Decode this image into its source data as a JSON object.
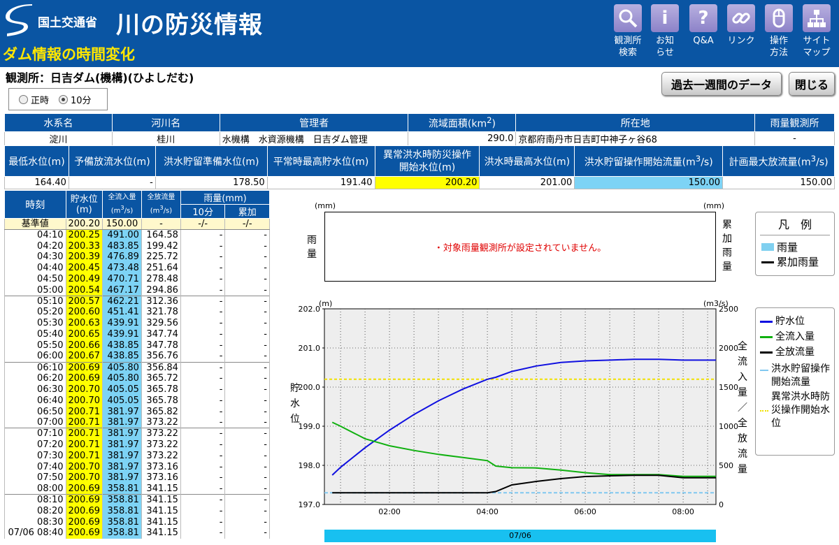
{
  "header": {
    "ministry": "国土交通省",
    "site_title": "川の防災情報",
    "page_title": "ダム情報の時間変化",
    "nav": [
      {
        "line1": "観測所",
        "line2": "検索",
        "icon": "search-icon"
      },
      {
        "line1": "お知",
        "line2": "らせ",
        "icon": "info-icon"
      },
      {
        "line1": "Q&A",
        "line2": "",
        "icon": "question-icon"
      },
      {
        "line1": "リンク",
        "line2": "",
        "icon": "link-icon"
      },
      {
        "line1": "操作",
        "line2": "方法",
        "icon": "mouse-icon"
      },
      {
        "line1": "サイト",
        "line2": "マップ",
        "icon": "sitemap-icon"
      }
    ],
    "icon_glyphs": {
      "info": "i",
      "question": "?"
    }
  },
  "station": "観測所：日吉ダム(機構)(ひよしだむ)",
  "buttons": {
    "past_week": "過去一週間のデータ",
    "close": "閉じる"
  },
  "radio": {
    "hourly": "正時",
    "ten_min": "10分",
    "selected": "10分"
  },
  "info1": {
    "headers": [
      "水系名",
      "河川名",
      "管理者",
      "流域面積(km",
      "2",
      ")",
      "所在地",
      "雨量観測所"
    ],
    "values": [
      "淀川",
      "桂川",
      "水機構　水資源機構　日吉ダム管理",
      "290.0",
      "京都府南丹市日吉町中神子ヶ谷68",
      "-"
    ]
  },
  "info2": {
    "headers": [
      "最低水位(m)",
      "予備放流水位(m)",
      "洪水貯留準備水位(m)",
      "平常時最高貯水位(m)",
      "異常洪水時防災操作",
      "開始水位(m)",
      "洪水時最高水位(m)",
      "洪水貯留操作開始流量(m",
      "3",
      "/s)",
      "計画最大放流量(m",
      "3",
      "/s)"
    ],
    "values": [
      "164.40",
      "-",
      "178.50",
      "191.40",
      "200.20",
      "201.00",
      "150.00",
      "150.00"
    ]
  },
  "time_table": {
    "headers": {
      "time": "時刻",
      "level": "貯水位",
      "level_unit": "(m)",
      "inflow": "全流入量",
      "outflow": "全放流量",
      "flow_unit_pre": "(m",
      "flow_unit_sup": "3",
      "flow_unit_post": "/s)",
      "rain": "雨量(mm)",
      "rain10": "10分",
      "rain_cum": "累加"
    },
    "base": {
      "label": "基準値",
      "level": "200.20",
      "inflow": "150.00",
      "outflow": "-",
      "rain10": "-/-",
      "rain_cum": "-/-"
    },
    "rows": [
      [
        "04:10",
        "200.25",
        "491.00",
        "164.58",
        "-",
        "-"
      ],
      [
        "04:20",
        "200.33",
        "483.85",
        "199.42",
        "-",
        "-"
      ],
      [
        "04:30",
        "200.39",
        "476.89",
        "225.72",
        "-",
        "-"
      ],
      [
        "04:40",
        "200.45",
        "473.48",
        "251.64",
        "-",
        "-"
      ],
      [
        "04:50",
        "200.49",
        "470.71",
        "278.48",
        "-",
        "-"
      ],
      [
        "05:00",
        "200.54",
        "467.17",
        "294.86",
        "-",
        "-"
      ],
      [
        "05:10",
        "200.57",
        "462.21",
        "312.36",
        "-",
        "-"
      ],
      [
        "05:20",
        "200.60",
        "451.41",
        "321.78",
        "-",
        "-"
      ],
      [
        "05:30",
        "200.63",
        "439.91",
        "329.56",
        "-",
        "-"
      ],
      [
        "05:40",
        "200.65",
        "439.91",
        "347.74",
        "-",
        "-"
      ],
      [
        "05:50",
        "200.66",
        "438.85",
        "347.78",
        "-",
        "-"
      ],
      [
        "06:00",
        "200.67",
        "438.85",
        "356.76",
        "-",
        "-"
      ],
      [
        "06:10",
        "200.69",
        "405.80",
        "356.84",
        "-",
        "-"
      ],
      [
        "06:20",
        "200.69",
        "405.80",
        "365.72",
        "-",
        "-"
      ],
      [
        "06:30",
        "200.70",
        "405.05",
        "365.78",
        "-",
        "-"
      ],
      [
        "06:40",
        "200.70",
        "405.05",
        "365.78",
        "-",
        "-"
      ],
      [
        "06:50",
        "200.71",
        "381.97",
        "365.82",
        "-",
        "-"
      ],
      [
        "07:00",
        "200.71",
        "381.97",
        "373.22",
        "-",
        "-"
      ],
      [
        "07:10",
        "200.71",
        "381.97",
        "373.22",
        "-",
        "-"
      ],
      [
        "07:20",
        "200.71",
        "381.97",
        "373.22",
        "-",
        "-"
      ],
      [
        "07:30",
        "200.71",
        "381.97",
        "373.22",
        "-",
        "-"
      ],
      [
        "07:40",
        "200.70",
        "381.97",
        "373.16",
        "-",
        "-"
      ],
      [
        "07:50",
        "200.70",
        "381.97",
        "373.16",
        "-",
        "-"
      ],
      [
        "08:00",
        "200.69",
        "358.81",
        "341.15",
        "-",
        "-"
      ],
      [
        "08:10",
        "200.69",
        "358.81",
        "341.15",
        "-",
        "-"
      ],
      [
        "08:20",
        "200.69",
        "358.81",
        "341.15",
        "-",
        "-"
      ],
      [
        "08:30",
        "200.69",
        "358.81",
        "341.15",
        "-",
        "-"
      ],
      [
        "07/06 08:40",
        "200.69",
        "358.81",
        "341.15",
        "-",
        "-"
      ]
    ]
  },
  "rain_chart": {
    "unit_left": "(mm)",
    "unit_right": "(mm)",
    "left_label": "雨量",
    "right_label": "累加雨量",
    "message": "・対象雨量観測所が設定されていません。",
    "legend_title": "凡　例",
    "legend": [
      "雨量",
      "累加雨量"
    ]
  },
  "chart_data": {
    "type": "line",
    "unit_left": "(m)",
    "unit_right": "(m3/s)",
    "ylabel": "貯水位",
    "y2label": "全流入量／全放流量",
    "ylim": [
      197.0,
      202.0
    ],
    "y2lim": [
      0,
      2500
    ],
    "yticks": [
      "202.0",
      "201.0",
      "200.0",
      "199.0",
      "198.0",
      "197.0"
    ],
    "y2ticks": [
      "2500",
      "2000",
      "1500",
      "1000",
      "500",
      "0"
    ],
    "xticks": [
      "02:00",
      "04:00",
      "06:00",
      "08:00"
    ],
    "xlim_hours": [
      0.67,
      8.67
    ],
    "date_label": "07/06",
    "x_hours": [
      0.83,
      1.0,
      1.5,
      2.0,
      2.5,
      3.0,
      3.5,
      4.0,
      4.17,
      4.5,
      5.0,
      5.5,
      6.0,
      6.5,
      7.0,
      7.5,
      8.0,
      8.67
    ],
    "series": [
      {
        "name": "貯水位",
        "color": "#1010e0",
        "axis": "left",
        "values": [
          197.75,
          197.95,
          198.45,
          198.9,
          199.3,
          199.65,
          199.95,
          200.2,
          200.25,
          200.4,
          200.54,
          200.63,
          200.67,
          200.69,
          200.71,
          200.71,
          200.69,
          200.69
        ]
      },
      {
        "name": "全流入量",
        "color": "#10b010",
        "axis": "right",
        "values": [
          1050,
          1000,
          840,
          750,
          690,
          640,
          600,
          560,
          491,
          470,
          467,
          440,
          406,
          382,
          382,
          382,
          359,
          359
        ]
      },
      {
        "name": "全放流量",
        "color": "#000000",
        "axis": "right",
        "values": [
          150,
          150,
          150,
          150,
          150,
          150,
          150,
          150,
          165,
          250,
          295,
          330,
          357,
          366,
          373,
          373,
          341,
          341
        ]
      }
    ],
    "ref_lines": [
      {
        "name": "洪水貯留操作開始流量",
        "color": "#80c8f0",
        "axis": "right",
        "value": 150
      },
      {
        "name": "異常洪水時防災操作開始水位",
        "color": "#f0e000",
        "axis": "left",
        "value": 200.2
      }
    ],
    "legend": [
      "貯水位",
      "全流入量",
      "全放流量",
      "洪水貯留操作開始流量",
      "異常洪水時防災操作開始水位"
    ]
  }
}
